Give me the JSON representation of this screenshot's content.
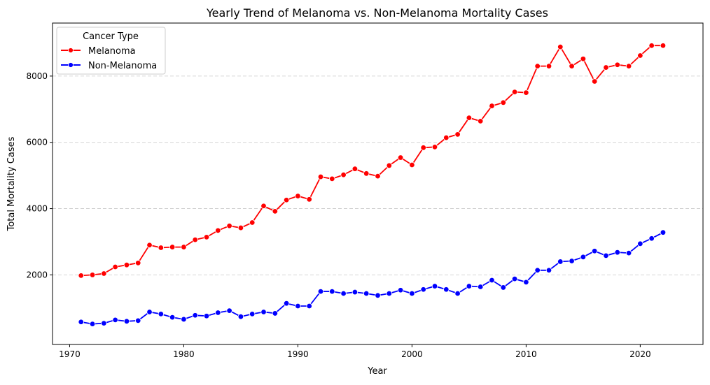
{
  "chart_data": {
    "type": "line",
    "title": "Yearly Trend of Melanoma vs. Non-Melanoma Mortality Cases",
    "xlabel": "Year",
    "ylabel": "Total Mortality Cases",
    "xlim": [
      1968.5,
      2025.5
    ],
    "ylim": [
      -100,
      9600
    ],
    "xticks": [
      1970,
      1980,
      1990,
      2000,
      2010,
      2020
    ],
    "yticks": [
      2000,
      4000,
      6000,
      8000
    ],
    "grid": "y-dashed",
    "legend": {
      "title": "Cancer Type",
      "placement": "top-left"
    },
    "x": [
      1971,
      1972,
      1973,
      1974,
      1975,
      1976,
      1977,
      1978,
      1979,
      1980,
      1981,
      1982,
      1983,
      1984,
      1985,
      1986,
      1987,
      1988,
      1989,
      1990,
      1991,
      1992,
      1993,
      1994,
      1995,
      1996,
      1997,
      1998,
      1999,
      2000,
      2001,
      2002,
      2003,
      2004,
      2005,
      2006,
      2007,
      2008,
      2009,
      2010,
      2011,
      2012,
      2013,
      2014,
      2015,
      2016,
      2017,
      2018,
      2019,
      2020,
      2021,
      2022
    ],
    "series": [
      {
        "name": "Melanoma",
        "color": "#ff0000",
        "values": [
          1980,
          2000,
          2040,
          2240,
          2300,
          2360,
          2900,
          2820,
          2840,
          2840,
          3060,
          3140,
          3340,
          3480,
          3420,
          3580,
          4080,
          3920,
          4260,
          4380,
          4280,
          4960,
          4900,
          5020,
          5200,
          5060,
          4980,
          5300,
          5540,
          5320,
          5840,
          5860,
          6140,
          6240,
          6740,
          6640,
          7100,
          7200,
          7520,
          7500,
          8300,
          8300,
          8880,
          8300,
          8520,
          7840,
          8260,
          8340,
          8300,
          8620,
          8920,
          8920
        ]
      },
      {
        "name": "Non-Melanoma",
        "color": "#0000ff",
        "values": [
          580,
          520,
          540,
          640,
          600,
          620,
          880,
          820,
          720,
          660,
          780,
          760,
          860,
          920,
          740,
          820,
          880,
          840,
          1140,
          1060,
          1060,
          1500,
          1500,
          1440,
          1480,
          1440,
          1380,
          1440,
          1540,
          1440,
          1560,
          1660,
          1560,
          1440,
          1660,
          1640,
          1840,
          1620,
          1880,
          1780,
          2140,
          2140,
          2400,
          2420,
          2540,
          2720,
          2580,
          2680,
          2660,
          2940,
          3100,
          3280
        ]
      }
    ]
  }
}
